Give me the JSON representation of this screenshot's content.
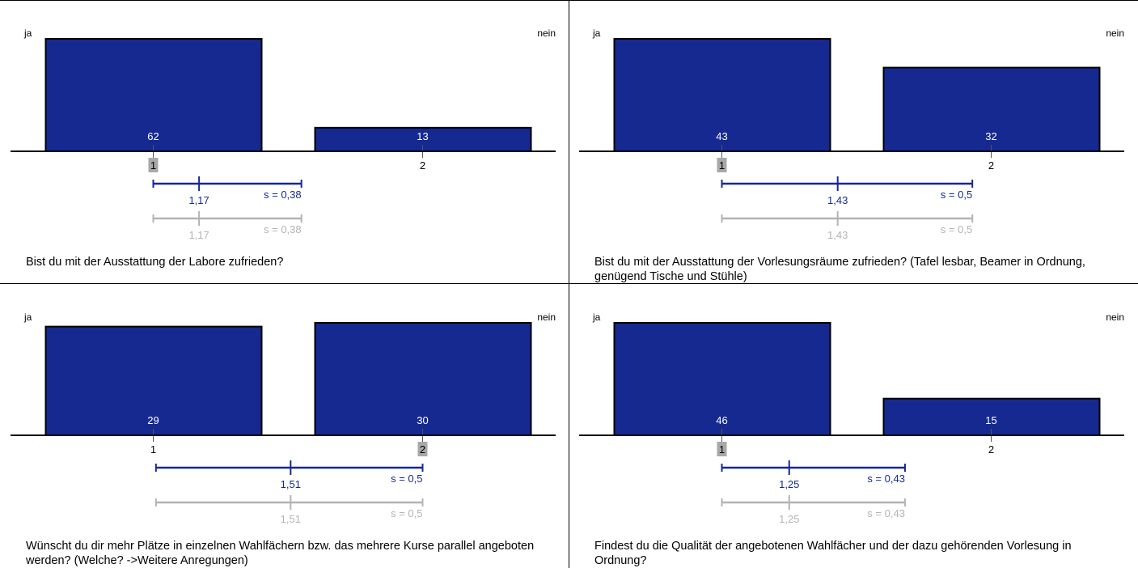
{
  "colors": {
    "bar": "#162990",
    "mean_line": "#162990",
    "ref_line": "#b3b3b3",
    "highlight": "#a8a8a8"
  },
  "chart_data": [
    {
      "type": "bar",
      "left_label": "ja",
      "right_label": "nein",
      "categories": [
        "1",
        "2"
      ],
      "values": [
        62,
        13
      ],
      "highlight_category": "1",
      "question": "Bist du mit der Ausstattung der Labore zufrieden?",
      "mean": {
        "value": 1.17,
        "label": "1,17",
        "s_label": "s = 0,38"
      },
      "reference": {
        "value": 1.17,
        "label": "1,17",
        "s_label": "s = 0,38"
      }
    },
    {
      "type": "bar",
      "left_label": "ja",
      "right_label": "nein",
      "categories": [
        "1",
        "2"
      ],
      "values": [
        43,
        32
      ],
      "highlight_category": "1",
      "question": "Bist du mit der Ausstattung der Vorlesungsräume zufrieden? (Tafel  lesbar, Beamer in Ordnung, genügend Tische und Stühle)",
      "mean": {
        "value": 1.43,
        "label": "1,43",
        "s_label": "s = 0,5"
      },
      "reference": {
        "value": 1.43,
        "label": "1,43",
        "s_label": "s = 0,5"
      }
    },
    {
      "type": "bar",
      "left_label": "ja",
      "right_label": "nein",
      "categories": [
        "1",
        "2"
      ],
      "values": [
        29,
        30
      ],
      "highlight_category": "2",
      "question": "Wünscht du dir mehr Plätze in einzelnen Wahlfächern bzw. das mehrere Kurse parallel angeboten werden? (Welche? ->Weitere Anregungen)",
      "mean": {
        "value": 1.51,
        "label": "1,51",
        "s_label": "s = 0,5"
      },
      "reference": {
        "value": 1.51,
        "label": "1,51",
        "s_label": "s = 0,5"
      }
    },
    {
      "type": "bar",
      "left_label": "ja",
      "right_label": "nein",
      "categories": [
        "1",
        "2"
      ],
      "values": [
        46,
        15
      ],
      "highlight_category": "1",
      "question": "Findest du die Qualität der angebotenen Wahlfächer und der dazu gehörenden Vorlesung in Ordnung?",
      "mean": {
        "value": 1.25,
        "label": "1,25",
        "s_label": "s = 0,43"
      },
      "reference": {
        "value": 1.25,
        "label": "1,25",
        "s_label": "s = 0,43"
      }
    }
  ]
}
